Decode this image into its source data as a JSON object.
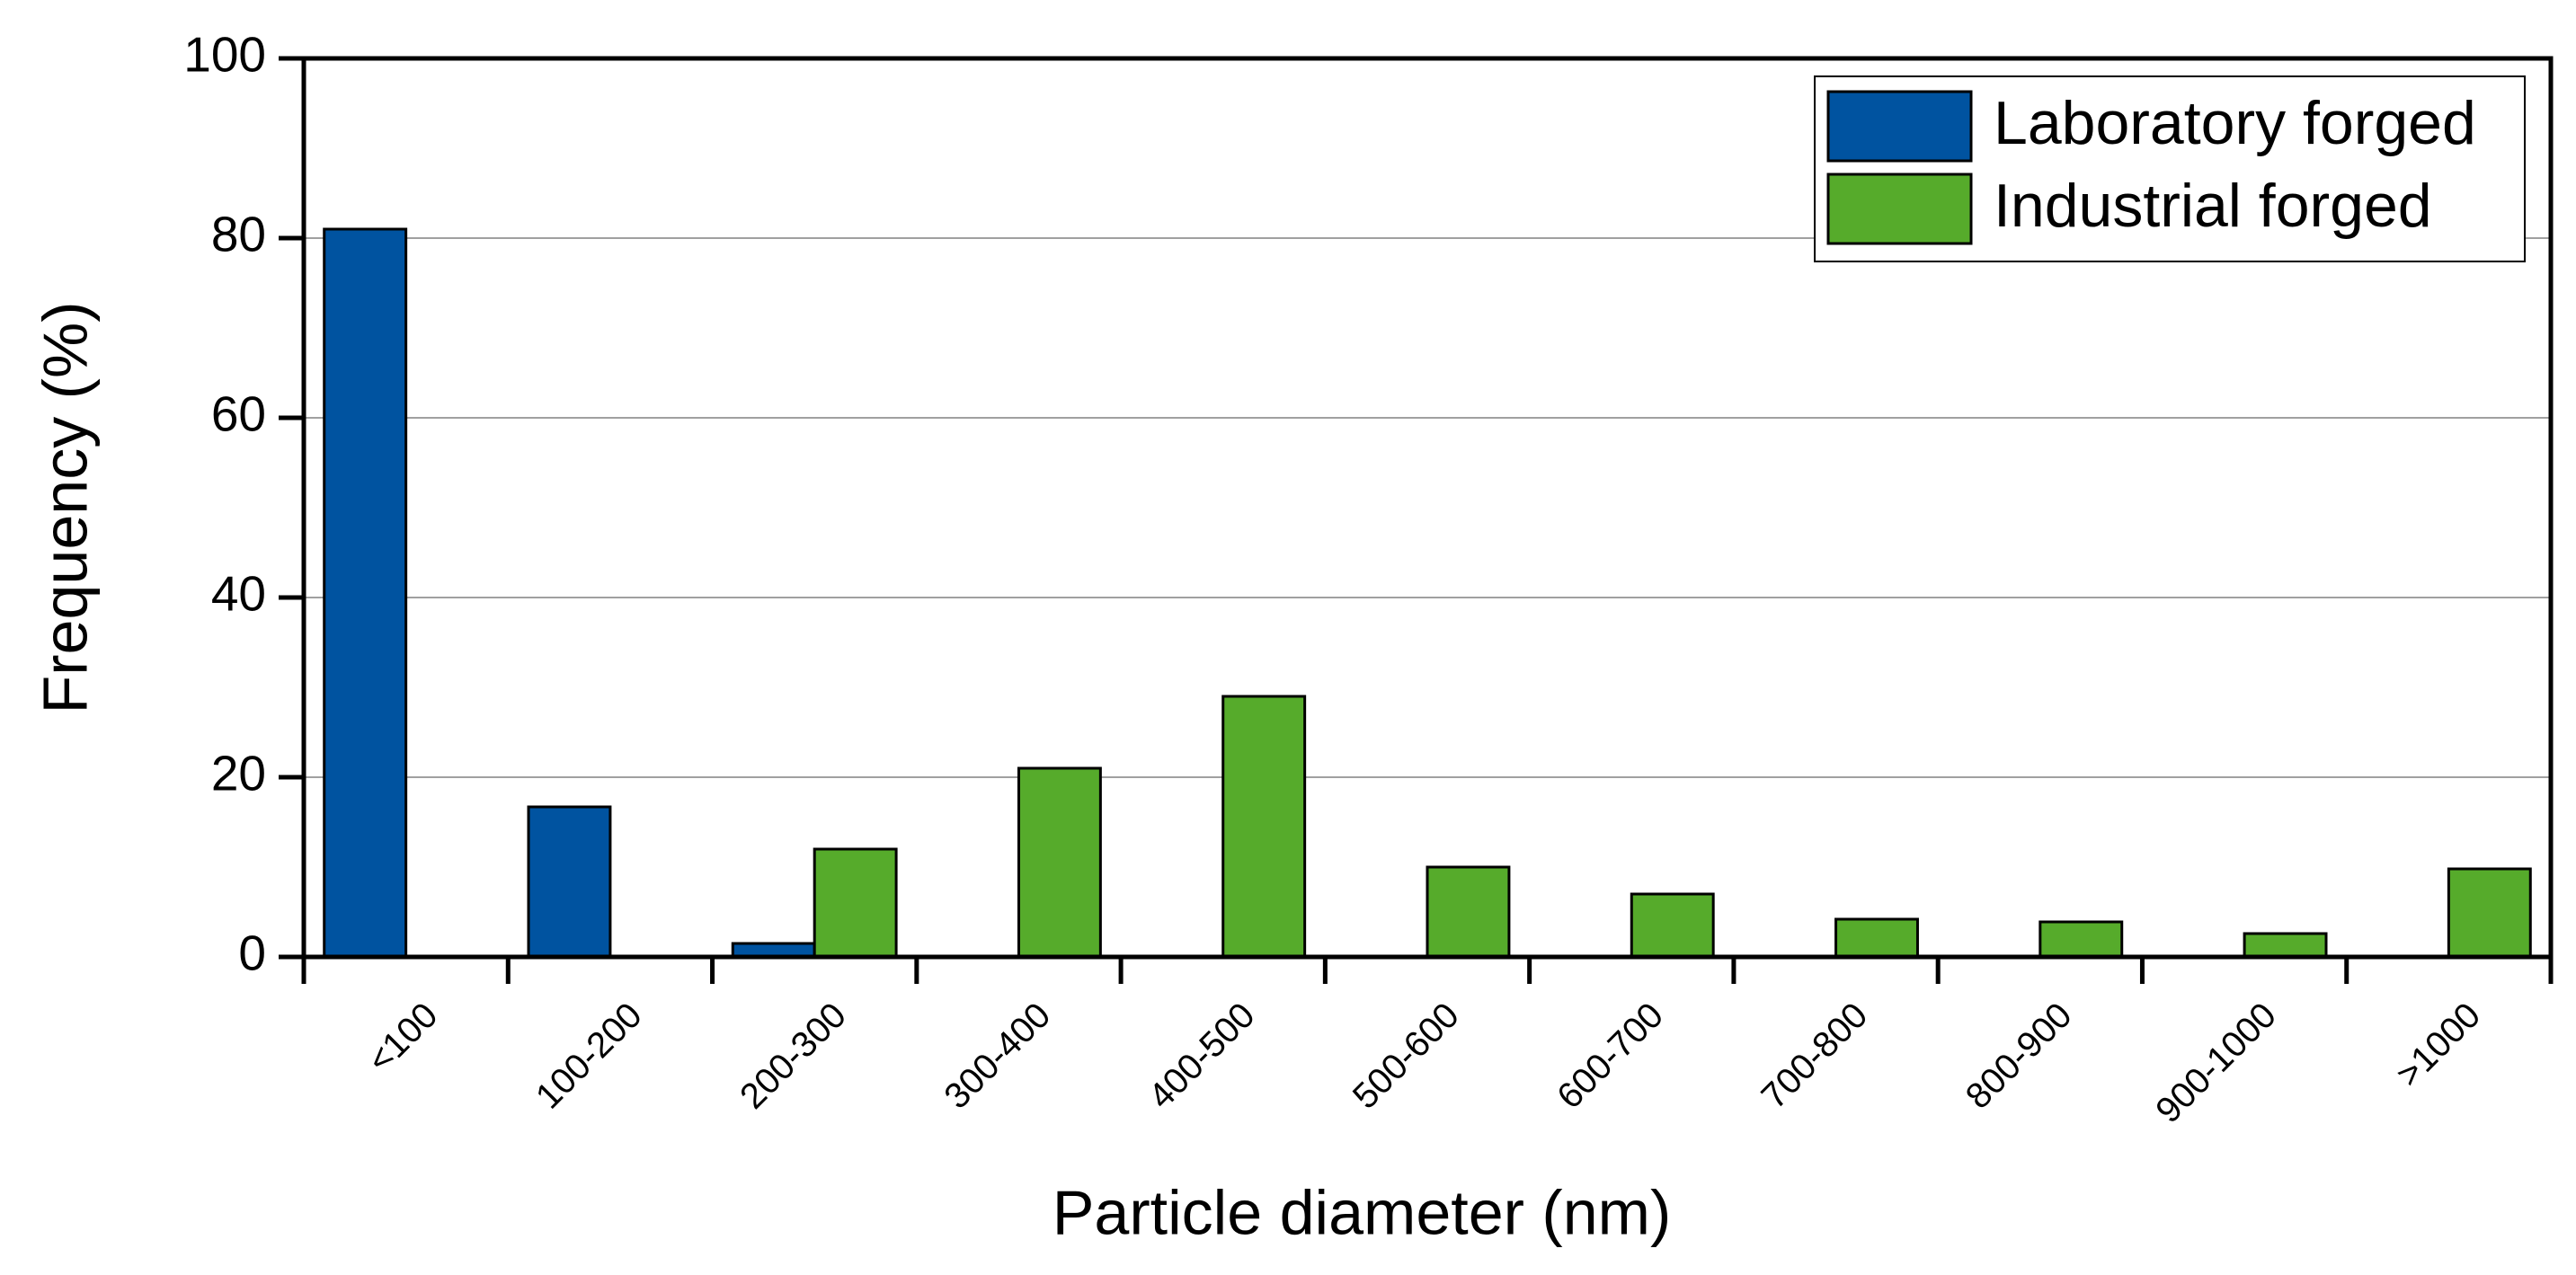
{
  "chart_data": {
    "type": "bar",
    "x_label": "Particle diameter (nm)",
    "y_label": "Frequency (%)",
    "categories": [
      "<100",
      "100-200",
      "200-300",
      "300-400",
      "400-500",
      "500-600",
      "600-700",
      "700-800",
      "800-900",
      "900-1000",
      ">1000"
    ],
    "series": [
      {
        "name": "Laboratory forged",
        "color": "#0053a0",
        "values": [
          81,
          16.7,
          1.5,
          0,
          0,
          0,
          0,
          0,
          0,
          0,
          0
        ]
      },
      {
        "name": "Industrial forged",
        "color": "#56ab2b",
        "values": [
          0,
          0,
          12,
          21,
          29,
          10,
          7,
          4.2,
          3.9,
          2.6,
          9.8
        ]
      }
    ],
    "ylim": [
      0,
      100
    ],
    "yticks": [
      0,
      20,
      40,
      60,
      80,
      100
    ],
    "grid": true,
    "legend": "upper right"
  }
}
